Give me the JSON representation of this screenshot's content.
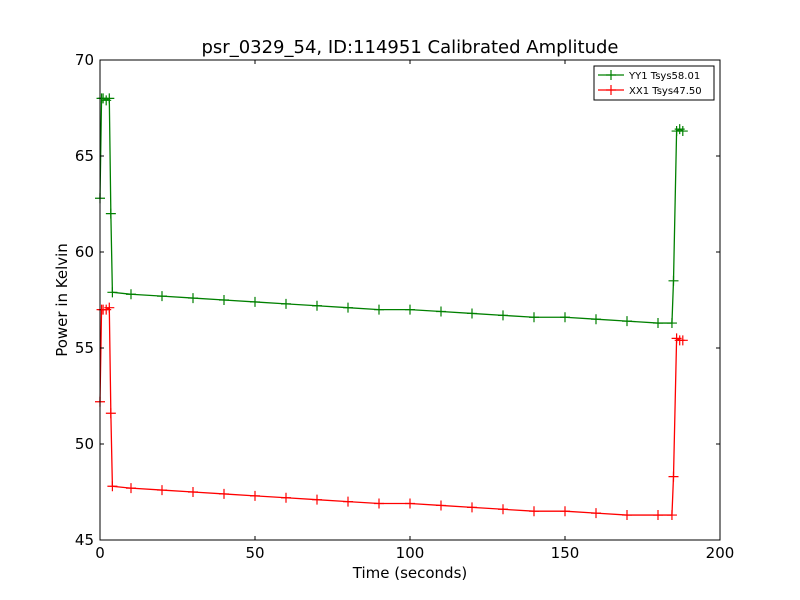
{
  "chart_data": {
    "type": "line",
    "title": "psr_0329_54, ID:114951 Calibrated Amplitude",
    "xlabel": "Time (seconds)",
    "ylabel": "Power in Kelvin",
    "xlim": [
      0,
      200
    ],
    "ylim": [
      45,
      70
    ],
    "xticks": [
      0,
      50,
      100,
      150,
      200
    ],
    "yticks": [
      45,
      50,
      55,
      60,
      65,
      70
    ],
    "grid": false,
    "legend_position": "top-right",
    "marker": "plus",
    "series": [
      {
        "name": "YY1 Tsys58.01",
        "color": "#008000",
        "x": [
          0.0,
          0.5,
          1,
          2,
          3,
          3.5,
          4,
          10,
          20,
          30,
          40,
          50,
          60,
          70,
          80,
          90,
          100,
          110,
          120,
          130,
          140,
          150,
          160,
          170,
          180,
          184.5,
          185,
          186,
          187,
          188
        ],
        "y": [
          62.8,
          68.0,
          68.0,
          67.9,
          68.0,
          62.0,
          57.9,
          57.8,
          57.7,
          57.6,
          57.5,
          57.4,
          57.3,
          57.2,
          57.1,
          57.0,
          57.0,
          56.9,
          56.8,
          56.7,
          56.6,
          56.6,
          56.5,
          56.4,
          56.3,
          56.3,
          58.5,
          66.3,
          66.4,
          66.3
        ]
      },
      {
        "name": "XX1 Tsys47.50",
        "color": "#ff0000",
        "x": [
          0.0,
          0.5,
          1,
          2,
          3,
          3.5,
          4,
          10,
          20,
          30,
          40,
          50,
          60,
          70,
          80,
          90,
          100,
          110,
          120,
          130,
          140,
          150,
          160,
          170,
          180,
          184.5,
          185,
          186,
          187,
          188
        ],
        "y": [
          52.2,
          57.0,
          57.0,
          57.0,
          57.1,
          51.6,
          47.8,
          47.7,
          47.6,
          47.5,
          47.4,
          47.3,
          47.2,
          47.1,
          47.0,
          46.9,
          46.9,
          46.8,
          46.7,
          46.6,
          46.5,
          46.5,
          46.4,
          46.3,
          46.3,
          46.3,
          48.3,
          55.5,
          55.4,
          55.4
        ]
      }
    ]
  }
}
